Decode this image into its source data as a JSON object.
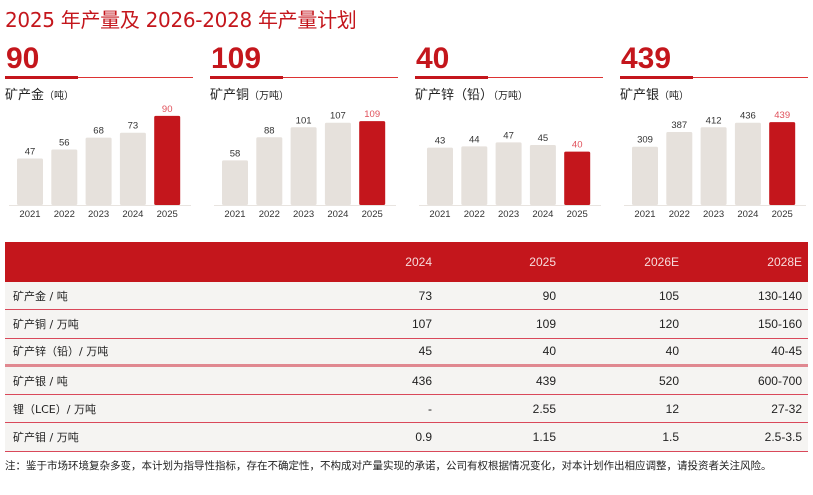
{
  "title": "2025 年产量及 2026-2028 年产量计划",
  "accent_color": "#c4161c",
  "bar_color": "#e6e1dc",
  "chart_data": [
    {
      "type": "bar",
      "headline": "90",
      "label": "矿产金",
      "unit": "（吨）",
      "categories": [
        "2021",
        "2022",
        "2023",
        "2024",
        "2025"
      ],
      "values": [
        47,
        56,
        68,
        73,
        90
      ],
      "ylim": [
        0,
        101
      ],
      "highlight": "2025"
    },
    {
      "type": "bar",
      "headline": "109",
      "label": "矿产铜",
      "unit": "（万吨）",
      "categories": [
        "2021",
        "2022",
        "2023",
        "2024",
        "2025"
      ],
      "values": [
        58,
        88,
        101,
        107,
        109
      ],
      "ylim": [
        0,
        130
      ],
      "highlight": "2025"
    },
    {
      "type": "bar",
      "headline": "40",
      "label": "矿产锌（铅）",
      "unit": "（万吨）",
      "categories": [
        "2021",
        "2022",
        "2023",
        "2024",
        "2025"
      ],
      "values": [
        43,
        44,
        47,
        45,
        40
      ],
      "ylim": [
        0,
        75
      ],
      "highlight": "2025"
    },
    {
      "type": "bar",
      "headline": "439",
      "label": "矿产银",
      "unit": "（吨）",
      "categories": [
        "2021",
        "2022",
        "2023",
        "2024",
        "2025"
      ],
      "values": [
        309,
        387,
        412,
        436,
        439
      ],
      "ylim": [
        0,
        530
      ],
      "highlight": "2025"
    }
  ],
  "table": {
    "headers": [
      "",
      "2024",
      "2025",
      "2026E",
      "2028E"
    ],
    "rows": [
      [
        "矿产金 / 吨",
        "73",
        "90",
        "105",
        "130-140"
      ],
      [
        "矿产铜 / 万吨",
        "107",
        "109",
        "120",
        "150-160"
      ],
      [
        "矿产锌（铅）/ 万吨",
        "45",
        "40",
        "40",
        "40-45"
      ],
      [
        "矿产银 / 吨",
        "436",
        "439",
        "520",
        "600-700"
      ],
      [
        "锂（LCE）/ 万吨",
        "-",
        "2.55",
        "12",
        "27-32"
      ],
      [
        "矿产钼 / 万吨",
        "0.9",
        "1.15",
        "1.5",
        "2.5-3.5"
      ]
    ]
  },
  "note": "注：鉴于市场环境复杂多变，本计划为指导性指标，存在不确定性，不构成对产量实现的承诺，公司有权根据情况变化，对本计划作出相应调整，请投资者关注风险。"
}
